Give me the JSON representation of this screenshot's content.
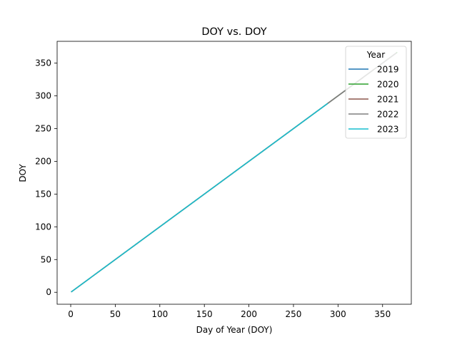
{
  "chart_data": {
    "type": "line",
    "title": "DOY vs. DOY",
    "xlabel": "Day of Year (DOY)",
    "ylabel": "DOY",
    "xlim": [
      -15.25,
      382.25
    ],
    "ylim": [
      -18.25,
      383.25
    ],
    "xticks": [
      0,
      50,
      100,
      150,
      200,
      250,
      300,
      350
    ],
    "yticks": [
      0,
      50,
      100,
      150,
      200,
      250,
      300,
      350
    ],
    "grid": false,
    "legend": {
      "title": "Year",
      "placement": "upper right"
    },
    "series": [
      {
        "name": "2019",
        "color": "#1f77b4",
        "x": [
          1,
          365
        ],
        "y": [
          1,
          365
        ]
      },
      {
        "name": "2020",
        "color": "#2ca02c",
        "x": [
          1,
          366
        ],
        "y": [
          1,
          366
        ]
      },
      {
        "name": "2021",
        "color": "#8c564b",
        "x": [
          1,
          365
        ],
        "y": [
          1,
          365
        ]
      },
      {
        "name": "2022",
        "color": "#7f7f7f",
        "x": [
          1,
          365
        ],
        "y": [
          1,
          365
        ]
      },
      {
        "name": "2023",
        "color": "#17becf",
        "x": [
          1,
          288
        ],
        "y": [
          1,
          288
        ]
      }
    ]
  }
}
